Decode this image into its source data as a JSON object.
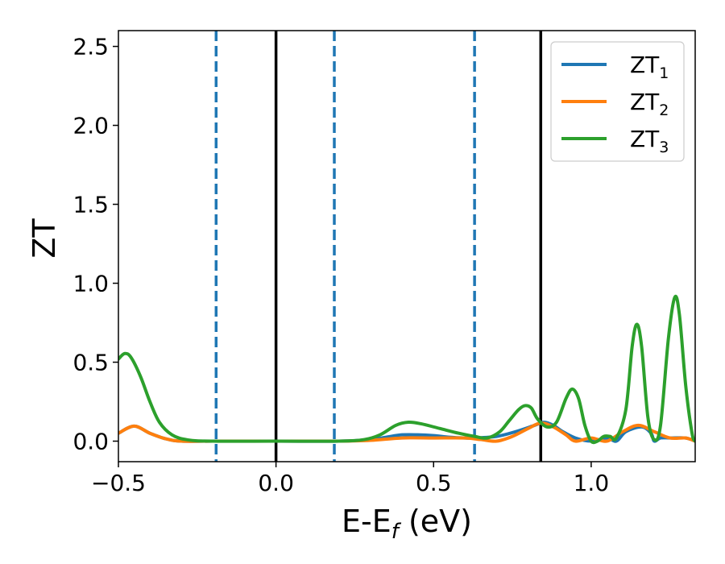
{
  "chart_data": {
    "type": "line",
    "title": "",
    "xlabel": "E-E",
    "xlabel_sub": "f",
    "xlabel_unit": " (eV)",
    "ylabel": "ZT",
    "xlim": [
      -0.5,
      1.33
    ],
    "ylim": [
      -0.13,
      2.6
    ],
    "x_ticks": [
      -0.5,
      0.0,
      0.5,
      1.0
    ],
    "x_tick_labels": [
      "−0.5",
      "0.0",
      "0.5",
      "1.0"
    ],
    "y_ticks": [
      0.0,
      0.5,
      1.0,
      1.5,
      2.0,
      2.5
    ],
    "y_tick_labels": [
      "0.0",
      "0.5",
      "1.0",
      "1.5",
      "2.0",
      "2.5"
    ],
    "grid": false,
    "legend_position": "top-right",
    "vlines_solid": [
      0.0,
      0.84
    ],
    "vlines_dashed": [
      -0.19,
      0.185,
      0.63
    ],
    "colors": {
      "ZT1": "#1f77b4",
      "ZT2": "#ff7f0e",
      "ZT3": "#2ca02c",
      "solid_vline": "#000000",
      "dashed_vline": "#1f77b4"
    },
    "series": [
      {
        "name": "ZT",
        "sub": "1",
        "color": "#1f77b4",
        "points": [
          [
            -0.5,
            0.05
          ],
          [
            -0.45,
            0.095
          ],
          [
            -0.4,
            0.05
          ],
          [
            -0.35,
            0.015
          ],
          [
            -0.3,
            0.0
          ],
          [
            -0.2,
            0.0
          ],
          [
            0.0,
            0.0
          ],
          [
            0.2,
            0.0
          ],
          [
            0.3,
            0.01
          ],
          [
            0.35,
            0.025
          ],
          [
            0.4,
            0.04
          ],
          [
            0.45,
            0.04
          ],
          [
            0.5,
            0.035
          ],
          [
            0.55,
            0.025
          ],
          [
            0.6,
            0.02
          ],
          [
            0.63,
            0.02
          ],
          [
            0.7,
            0.03
          ],
          [
            0.76,
            0.06
          ],
          [
            0.82,
            0.1
          ],
          [
            0.85,
            0.12
          ],
          [
            0.88,
            0.1
          ],
          [
            0.91,
            0.06
          ],
          [
            0.95,
            0.02
          ],
          [
            1.0,
            0.0
          ],
          [
            1.05,
            0.02
          ],
          [
            1.08,
            0.0
          ],
          [
            1.11,
            0.06
          ],
          [
            1.16,
            0.09
          ],
          [
            1.19,
            0.05
          ],
          [
            1.2,
            0.0
          ],
          [
            1.22,
            0.02
          ],
          [
            1.25,
            0.02
          ],
          [
            1.3,
            0.02
          ],
          [
            1.33,
            0.0
          ]
        ]
      },
      {
        "name": "ZT",
        "sub": "2",
        "color": "#ff7f0e",
        "points": [
          [
            -0.5,
            0.05
          ],
          [
            -0.45,
            0.095
          ],
          [
            -0.4,
            0.05
          ],
          [
            -0.35,
            0.015
          ],
          [
            -0.3,
            0.0
          ],
          [
            -0.2,
            0.0
          ],
          [
            0.0,
            0.0
          ],
          [
            0.2,
            0.0
          ],
          [
            0.3,
            0.005
          ],
          [
            0.4,
            0.02
          ],
          [
            0.5,
            0.02
          ],
          [
            0.6,
            0.02
          ],
          [
            0.65,
            0.01
          ],
          [
            0.7,
            0.0
          ],
          [
            0.75,
            0.03
          ],
          [
            0.8,
            0.08
          ],
          [
            0.84,
            0.115
          ],
          [
            0.88,
            0.09
          ],
          [
            0.92,
            0.04
          ],
          [
            0.95,
            0.0
          ],
          [
            1.0,
            0.02
          ],
          [
            1.05,
            0.0
          ],
          [
            1.1,
            0.06
          ],
          [
            1.15,
            0.1
          ],
          [
            1.2,
            0.06
          ],
          [
            1.25,
            0.02
          ],
          [
            1.3,
            0.02
          ],
          [
            1.33,
            0.0
          ]
        ]
      },
      {
        "name": "ZT",
        "sub": "3",
        "color": "#2ca02c",
        "points": [
          [
            -0.5,
            0.52
          ],
          [
            -0.48,
            0.555
          ],
          [
            -0.46,
            0.53
          ],
          [
            -0.43,
            0.41
          ],
          [
            -0.4,
            0.25
          ],
          [
            -0.37,
            0.12
          ],
          [
            -0.33,
            0.04
          ],
          [
            -0.28,
            0.008
          ],
          [
            -0.2,
            0.0
          ],
          [
            0.0,
            0.0
          ],
          [
            0.2,
            0.0
          ],
          [
            0.28,
            0.01
          ],
          [
            0.33,
            0.04
          ],
          [
            0.38,
            0.1
          ],
          [
            0.42,
            0.12
          ],
          [
            0.46,
            0.11
          ],
          [
            0.52,
            0.08
          ],
          [
            0.58,
            0.05
          ],
          [
            0.63,
            0.03
          ],
          [
            0.67,
            0.02
          ],
          [
            0.71,
            0.06
          ],
          [
            0.74,
            0.13
          ],
          [
            0.77,
            0.2
          ],
          [
            0.79,
            0.225
          ],
          [
            0.81,
            0.21
          ],
          [
            0.83,
            0.14
          ],
          [
            0.86,
            0.09
          ],
          [
            0.89,
            0.12
          ],
          [
            0.92,
            0.27
          ],
          [
            0.94,
            0.33
          ],
          [
            0.96,
            0.27
          ],
          [
            0.98,
            0.1
          ],
          [
            1.0,
            0.0
          ],
          [
            1.02,
            0.0
          ],
          [
            1.04,
            0.03
          ],
          [
            1.06,
            0.03
          ],
          [
            1.08,
            0.02
          ],
          [
            1.11,
            0.2
          ],
          [
            1.13,
            0.6
          ],
          [
            1.145,
            0.74
          ],
          [
            1.16,
            0.6
          ],
          [
            1.18,
            0.15
          ],
          [
            1.2,
            0.01
          ],
          [
            1.22,
            0.1
          ],
          [
            1.245,
            0.65
          ],
          [
            1.265,
            0.91
          ],
          [
            1.28,
            0.8
          ],
          [
            1.3,
            0.35
          ],
          [
            1.32,
            0.05
          ],
          [
            1.33,
            0.0
          ]
        ]
      }
    ]
  }
}
